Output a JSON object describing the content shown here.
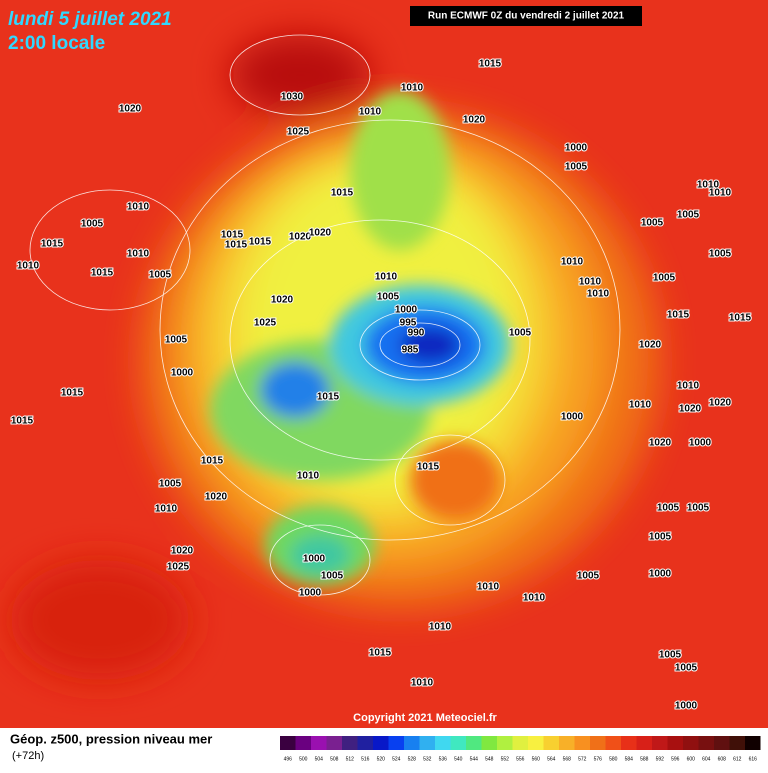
{
  "header": {
    "date": "lundi 5 juillet 2021",
    "time": "2:00 locale",
    "run": "Run ECMWF 0Z du vendredi 2 juillet 2021"
  },
  "footer": {
    "title": "Géop. z500, pression niveau mer",
    "lead": "(+72h)",
    "copyright": "Copyright 2021 Meteociel.fr"
  },
  "scale": [
    496,
    500,
    504,
    508,
    512,
    516,
    520,
    524,
    528,
    532,
    536,
    540,
    544,
    548,
    552,
    556,
    560,
    564,
    568,
    572,
    576,
    580,
    584,
    588,
    592,
    596,
    600,
    604,
    608,
    612,
    616
  ],
  "isobar_labels": [
    1015,
    1010,
    1030,
    1020,
    1010,
    1025,
    1020,
    1000,
    1005,
    1015,
    1010,
    1015,
    1005,
    1010,
    1010,
    1015,
    1005,
    1015,
    1015,
    1015,
    1020,
    1020,
    1010,
    1005,
    1000,
    995,
    990,
    985,
    1005,
    1020,
    1025,
    1005,
    1000,
    1015,
    1015,
    1000,
    1015,
    1015,
    1005,
    1020,
    1010,
    1010,
    1015,
    1010,
    1010,
    1010,
    1005,
    1005,
    1005,
    1005,
    1010,
    1010,
    1015,
    1000,
    1005,
    1000,
    1010,
    1010,
    1005,
    1000,
    1020,
    1025,
    1010,
    1015,
    1010,
    1005,
    1005,
    1005,
    1005,
    1005,
    1000,
    1000,
    1020,
    1020,
    1010,
    1010,
    1020,
    1020,
    1015
  ]
}
